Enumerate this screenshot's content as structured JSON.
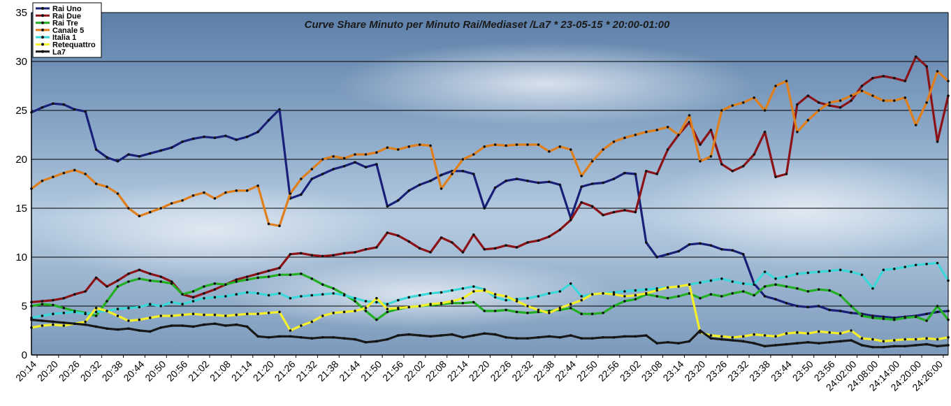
{
  "chart_data": {
    "type": "line",
    "title": "Curve Share Minuto per Minuto Rai/Mediaset /La7 * 23-05-15 * 20:00-01:00",
    "xlabel": "",
    "ylabel": "",
    "ylim": [
      0,
      35
    ],
    "yticks": [
      0,
      5,
      10,
      15,
      20,
      25,
      30,
      35
    ],
    "grid": "horizontal",
    "legend_position": "top-left",
    "x_tick_labels": [
      "20:14",
      "20:20",
      "20:26",
      "20:32",
      "20:38",
      "20:44",
      "20:50",
      "20:56",
      "21:02",
      "21:08",
      "21:14",
      "21:20",
      "21:26",
      "21:32",
      "21:38",
      "21:44",
      "21:50",
      "21:56",
      "22:02",
      "22:08",
      "22:14",
      "22:20",
      "22:26",
      "22:32",
      "22:38",
      "22:44",
      "22:50",
      "22:56",
      "23:02",
      "23:08",
      "23:14",
      "23:20",
      "23:26",
      "23:32",
      "23:38",
      "23:44",
      "23:50",
      "23:56",
      "24:02:00",
      "24:08:00",
      "24:14:00",
      "24:20:00",
      "24:26:00"
    ],
    "x": [
      "20:14",
      "20:17",
      "20:20",
      "20:23",
      "20:26",
      "20:29",
      "20:32",
      "20:35",
      "20:38",
      "20:41",
      "20:44",
      "20:47",
      "20:50",
      "20:53",
      "20:56",
      "20:59",
      "21:02",
      "21:05",
      "21:08",
      "21:11",
      "21:14",
      "21:17",
      "21:20",
      "21:23",
      "21:26",
      "21:29",
      "21:32",
      "21:35",
      "21:38",
      "21:41",
      "21:44",
      "21:47",
      "21:50",
      "21:53",
      "21:56",
      "21:59",
      "22:02",
      "22:05",
      "22:08",
      "22:11",
      "22:14",
      "22:17",
      "22:20",
      "22:23",
      "22:26",
      "22:29",
      "22:32",
      "22:35",
      "22:38",
      "22:41",
      "22:44",
      "22:47",
      "22:50",
      "22:53",
      "22:56",
      "22:59",
      "23:02",
      "23:05",
      "23:08",
      "23:11",
      "23:14",
      "23:17",
      "23:20",
      "23:23",
      "23:26",
      "23:29",
      "23:32",
      "23:35",
      "23:38",
      "23:41",
      "23:44",
      "23:47",
      "23:50",
      "23:53",
      "23:56",
      "23:59",
      "24:02:00",
      "24:05",
      "24:08:00",
      "24:11",
      "24:14:00",
      "24:17",
      "24:20:00",
      "24:23",
      "24:26:00",
      "24:29"
    ],
    "series": [
      {
        "name": "Rai Uno",
        "color": "#1a1f78",
        "values": [
          24.8,
          25.3,
          25.7,
          25.6,
          25.1,
          24.9,
          21.0,
          20.2,
          19.8,
          20.5,
          20.3,
          20.6,
          20.9,
          21.2,
          21.8,
          22.1,
          22.3,
          22.2,
          22.4,
          22.0,
          22.3,
          22.8,
          24.0,
          25.1,
          16.0,
          16.4,
          18.0,
          18.5,
          19.0,
          19.3,
          19.7,
          19.2,
          19.5,
          15.2,
          15.8,
          16.8,
          17.4,
          17.8,
          18.4,
          18.8,
          18.8,
          18.5,
          15.0,
          17.1,
          17.8,
          18.0,
          17.8,
          17.6,
          17.7,
          17.4,
          14.0,
          17.2,
          17.5,
          17.6,
          18.0,
          18.6,
          18.5,
          11.5,
          10.0,
          10.3,
          10.6,
          11.3,
          11.4,
          11.2,
          10.8,
          10.7,
          10.3,
          7.3,
          6.0,
          5.7,
          5.3,
          5.0,
          4.9,
          5.0,
          4.6,
          4.5,
          4.3,
          4.2,
          4.0,
          3.9,
          3.8,
          3.9,
          4.0,
          4.2,
          4.4,
          4.5
        ]
      },
      {
        "name": "Rai Due",
        "color": "#8b1318",
        "values": [
          5.4,
          5.5,
          5.6,
          5.8,
          6.2,
          6.5,
          7.9,
          7.0,
          7.6,
          8.3,
          8.7,
          8.3,
          8.0,
          7.5,
          6.2,
          5.9,
          6.3,
          6.7,
          7.2,
          7.7,
          8.0,
          8.3,
          8.6,
          8.9,
          10.3,
          10.4,
          10.2,
          10.1,
          10.2,
          10.4,
          10.5,
          10.8,
          11.0,
          12.5,
          12.2,
          11.6,
          10.9,
          10.5,
          12.0,
          11.5,
          10.5,
          12.3,
          10.8,
          10.9,
          11.2,
          11.0,
          11.5,
          11.7,
          12.1,
          12.8,
          13.8,
          15.6,
          15.2,
          14.3,
          14.6,
          14.8,
          14.6,
          18.8,
          18.5,
          21.0,
          22.5,
          23.8,
          21.5,
          23.0,
          19.5,
          18.8,
          19.3,
          20.5,
          22.8,
          18.2,
          18.5,
          25.6,
          26.5,
          25.8,
          25.5,
          25.3,
          26.0,
          27.5,
          28.3,
          28.5,
          28.3,
          28.0,
          30.5,
          29.5,
          21.8,
          26.5
        ]
      },
      {
        "name": "Rai Tre",
        "color": "#22b022",
        "values": [
          5.0,
          5.2,
          5.1,
          4.8,
          4.5,
          4.3,
          4.0,
          5.5,
          7.0,
          7.5,
          7.8,
          7.6,
          7.5,
          7.3,
          6.2,
          6.5,
          7.0,
          7.3,
          7.2,
          7.5,
          7.7,
          7.9,
          8.0,
          8.2,
          8.2,
          8.3,
          7.8,
          7.2,
          6.8,
          6.2,
          5.5,
          4.5,
          3.6,
          4.4,
          4.7,
          4.9,
          5.0,
          5.1,
          5.2,
          5.3,
          5.3,
          5.4,
          4.5,
          4.5,
          4.6,
          4.4,
          4.3,
          4.4,
          4.5,
          4.6,
          4.8,
          4.2,
          4.2,
          4.3,
          5.0,
          5.5,
          5.7,
          6.2,
          6.0,
          5.8,
          6.0,
          6.3,
          5.8,
          6.2,
          6.0,
          6.3,
          6.5,
          6.1,
          7.0,
          7.2,
          7.0,
          6.8,
          6.5,
          6.7,
          6.6,
          6.1,
          5.0,
          4.0,
          3.8,
          3.7,
          3.6,
          3.8,
          3.9,
          3.5,
          5.0,
          3.6
        ]
      },
      {
        "name": "Canale 5",
        "color": "#e07e1a",
        "values": [
          17.0,
          17.8,
          18.2,
          18.6,
          18.9,
          18.5,
          17.5,
          17.2,
          16.5,
          15.0,
          14.2,
          14.6,
          15.0,
          15.5,
          15.8,
          16.3,
          16.6,
          16.0,
          16.6,
          16.8,
          16.8,
          17.3,
          13.4,
          13.2,
          16.5,
          18.0,
          19.0,
          20.0,
          20.3,
          20.1,
          20.5,
          20.5,
          20.7,
          21.2,
          21.0,
          21.3,
          21.5,
          21.4,
          17.0,
          18.5,
          20.0,
          20.5,
          21.3,
          21.5,
          21.4,
          21.5,
          21.5,
          21.5,
          20.8,
          21.3,
          21.0,
          18.3,
          19.8,
          21.0,
          21.8,
          22.2,
          22.5,
          22.8,
          23.0,
          23.3,
          22.5,
          24.5,
          19.8,
          20.3,
          25.0,
          25.5,
          25.8,
          26.3,
          25.0,
          27.5,
          28.0,
          22.8,
          24.0,
          25.0,
          25.8,
          26.0,
          26.5,
          27.0,
          26.5,
          26.0,
          26.0,
          26.3,
          23.5,
          25.8,
          29.0,
          28.0
        ]
      },
      {
        "name": "Italia 1",
        "color": "#3ad8d8",
        "values": [
          3.8,
          4.0,
          4.2,
          4.3,
          4.4,
          4.2,
          4.4,
          4.5,
          4.7,
          4.8,
          4.9,
          5.2,
          5.0,
          5.4,
          5.2,
          5.5,
          5.8,
          5.9,
          6.0,
          6.2,
          6.4,
          6.3,
          6.1,
          6.3,
          5.8,
          6.0,
          6.1,
          6.2,
          6.3,
          6.1,
          5.8,
          5.5,
          5.4,
          5.2,
          5.6,
          5.9,
          6.1,
          6.3,
          6.4,
          6.6,
          6.8,
          7.0,
          6.7,
          5.9,
          5.6,
          5.7,
          5.8,
          6.0,
          6.3,
          6.5,
          7.3,
          6.0,
          6.2,
          6.3,
          6.4,
          6.5,
          6.6,
          6.7,
          6.8,
          6.9,
          7.0,
          7.2,
          7.4,
          7.6,
          7.8,
          7.5,
          7.3,
          7.2,
          8.5,
          7.8,
          8.0,
          8.3,
          8.4,
          8.5,
          8.6,
          8.7,
          8.5,
          8.2,
          6.8,
          8.7,
          8.8,
          9.0,
          9.2,
          9.3,
          9.4,
          7.6
        ]
      },
      {
        "name": "Retequattro",
        "color": "#f5f02a",
        "values": [
          2.8,
          3.0,
          3.1,
          3.0,
          3.2,
          3.4,
          4.8,
          4.5,
          4.0,
          3.5,
          3.6,
          3.8,
          4.0,
          4.0,
          4.1,
          4.2,
          4.1,
          4.1,
          4.0,
          4.1,
          4.2,
          4.2,
          4.3,
          4.4,
          2.5,
          3.0,
          3.4,
          4.0,
          4.3,
          4.4,
          4.5,
          4.8,
          5.8,
          4.7,
          4.8,
          4.9,
          5.0,
          5.2,
          5.3,
          5.5,
          5.8,
          6.5,
          6.6,
          6.2,
          6.0,
          5.5,
          5.0,
          4.6,
          4.3,
          4.8,
          5.2,
          5.6,
          6.2,
          6.3,
          6.2,
          6.0,
          6.1,
          6.3,
          6.6,
          6.9,
          7.0,
          7.2,
          2.3,
          2.0,
          1.9,
          1.8,
          1.9,
          2.1,
          2.0,
          1.9,
          2.2,
          2.3,
          2.2,
          2.4,
          2.3,
          2.2,
          2.5,
          1.7,
          1.6,
          1.4,
          1.5,
          1.6,
          1.6,
          1.7,
          1.6,
          1.8
        ]
      },
      {
        "name": "La7",
        "color": "#1a1a1a",
        "values": [
          3.6,
          3.5,
          3.4,
          3.3,
          3.2,
          3.1,
          2.9,
          2.7,
          2.6,
          2.7,
          2.5,
          2.4,
          2.8,
          3.0,
          3.0,
          2.9,
          3.1,
          3.2,
          3.0,
          3.1,
          2.9,
          1.9,
          1.8,
          1.9,
          1.9,
          1.8,
          1.7,
          1.8,
          1.8,
          1.7,
          1.6,
          1.3,
          1.4,
          1.6,
          2.0,
          2.1,
          2.0,
          1.9,
          2.0,
          2.1,
          1.8,
          2.0,
          2.2,
          2.1,
          1.8,
          1.7,
          1.7,
          1.8,
          1.9,
          1.8,
          2.0,
          1.7,
          1.7,
          1.8,
          1.8,
          1.9,
          1.9,
          2.0,
          1.2,
          1.3,
          1.2,
          1.4,
          2.5,
          1.7,
          1.6,
          1.5,
          1.4,
          1.2,
          0.9,
          1.0,
          1.1,
          1.2,
          1.3,
          1.2,
          1.3,
          1.4,
          1.5,
          1.0,
          0.8,
          0.8,
          0.9,
          0.9,
          1.0,
          1.1,
          0.9,
          1.0
        ]
      }
    ]
  }
}
